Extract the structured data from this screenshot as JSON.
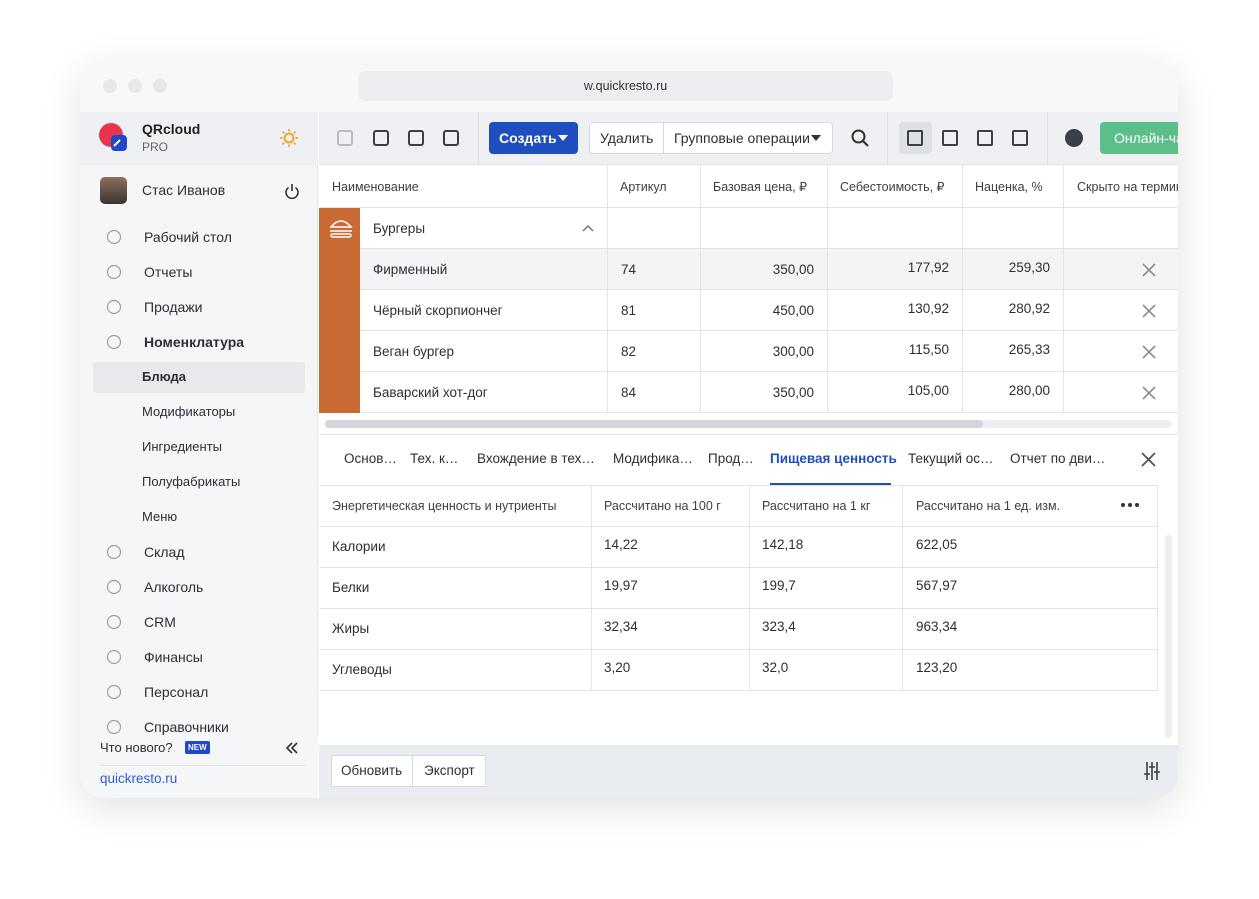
{
  "browser": {
    "url": "w.quickresto.ru"
  },
  "sidebar": {
    "brand": "QRcloud",
    "plan": "PRO",
    "user": "Стас Иванов",
    "menu": [
      "Рабочий стол",
      "Отчеты",
      "Продажи",
      "Номенклатура"
    ],
    "submenu": [
      "Блюда",
      "Модификаторы",
      "Ингредиенты",
      "Полуфабрикаты",
      "Меню"
    ],
    "menu_after": [
      "Склад",
      "Алкоголь",
      "CRM",
      "Финансы",
      "Персонал",
      "Справочники"
    ],
    "whats_new": "Что нового?",
    "new_badge": "NEW",
    "site": "quickresto.ru"
  },
  "toolbar": {
    "create": "Создать",
    "delete": "Удалить",
    "group_ops": "Групповые операции",
    "online_chat": "Онлайн-ча"
  },
  "dishes_table": {
    "columns": [
      "Наименование",
      "Артикул",
      "Базовая цена, ₽",
      "Себестоимость, ₽",
      "Наценка, %",
      "Скрыто на термин"
    ],
    "group": "Бургеры",
    "rows": [
      [
        "Фирменный",
        "74",
        "350,00",
        "177,92",
        "259,30"
      ],
      [
        "Чёрный скорпиончег",
        "81",
        "450,00",
        "130,92",
        "280,92"
      ],
      [
        "Веган бургер",
        "82",
        "300,00",
        "115,50",
        "265,33"
      ],
      [
        "Баварский хот-дог",
        "84",
        "350,00",
        "105,00",
        "280,00"
      ]
    ]
  },
  "tabs": {
    "items": [
      "Основ…",
      "Тех. к…",
      "Вхождение в тех…",
      "Модифика…",
      "Прод…",
      "Пищевая ценность",
      "Текущий ос…",
      "Отчет по дви…"
    ],
    "active": 5
  },
  "nutrition_table": {
    "columns": [
      "Энергетическая ценность и нутриенты",
      "Рассчитано на 100 г",
      "Рассчитано на 1 кг",
      "Рассчитано на 1 ед. изм."
    ],
    "rows": [
      [
        "Калории",
        "14,22",
        "142,18",
        "622,05"
      ],
      [
        "Белки",
        "19,97",
        "199,7",
        "567,97"
      ],
      [
        "Жиры",
        "32,34",
        "323,4",
        "963,34"
      ],
      [
        "Углеводы",
        "3,20",
        "32,0",
        "123,20"
      ]
    ]
  },
  "footer": {
    "refresh": "Обновить",
    "export": "Экспорт"
  }
}
